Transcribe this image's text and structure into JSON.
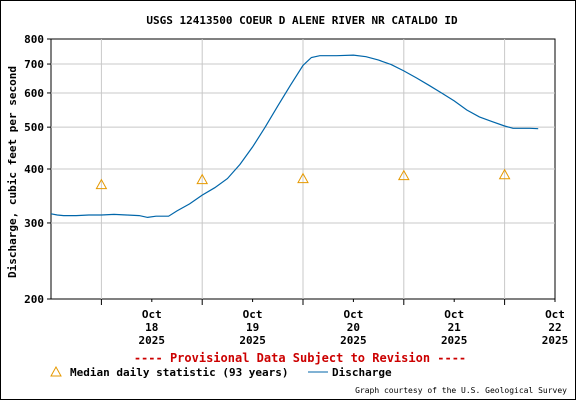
{
  "chart_data": {
    "type": "line",
    "title": "USGS 12413500 COEUR D ALENE RIVER NR CATALDO ID",
    "ylabel": "Discharge, cubic feet per second",
    "xlabel": "",
    "y_scale": "log",
    "ylim": [
      200,
      800
    ],
    "y_ticks": [
      200,
      300,
      400,
      500,
      600,
      700,
      800
    ],
    "x_ticks": [
      {
        "day": 18,
        "lines": [
          "Oct",
          "18",
          "2025"
        ]
      },
      {
        "day": 19,
        "lines": [
          "Oct",
          "19",
          "2025"
        ]
      },
      {
        "day": 20,
        "lines": [
          "Oct",
          "20",
          "2025"
        ]
      },
      {
        "day": 21,
        "lines": [
          "Oct",
          "21",
          "2025"
        ]
      },
      {
        "day": 22,
        "lines": [
          "Oct",
          "22",
          "2025"
        ]
      }
    ],
    "xlim": [
      "2025-10-17 12:00",
      "2025-10-22 12:00"
    ],
    "grid": true,
    "series": [
      {
        "name": "Discharge",
        "color": "#0066aa",
        "points": [
          [
            "2025-10-17 12:00",
            315
          ],
          [
            "2025-10-17 13:30",
            313
          ],
          [
            "2025-10-17 15:00",
            312
          ],
          [
            "2025-10-17 18:00",
            312
          ],
          [
            "2025-10-17 21:00",
            313
          ],
          [
            "2025-10-18 00:00",
            313
          ],
          [
            "2025-10-18 03:00",
            314
          ],
          [
            "2025-10-18 06:00",
            313
          ],
          [
            "2025-10-18 09:00",
            312
          ],
          [
            "2025-10-18 11:00",
            309
          ],
          [
            "2025-10-18 13:00",
            311
          ],
          [
            "2025-10-18 16:00",
            311
          ],
          [
            "2025-10-18 18:00",
            320
          ],
          [
            "2025-10-18 21:00",
            332
          ],
          [
            "2025-10-19 00:00",
            348
          ],
          [
            "2025-10-19 03:00",
            362
          ],
          [
            "2025-10-19 06:00",
            380
          ],
          [
            "2025-10-19 09:00",
            410
          ],
          [
            "2025-10-19 12:00",
            450
          ],
          [
            "2025-10-19 15:00",
            500
          ],
          [
            "2025-10-19 18:00",
            560
          ],
          [
            "2025-10-19 21:00",
            625
          ],
          [
            "2025-10-20 00:00",
            695
          ],
          [
            "2025-10-20 02:00",
            725
          ],
          [
            "2025-10-20 04:00",
            732
          ],
          [
            "2025-10-20 08:00",
            732
          ],
          [
            "2025-10-20 12:00",
            734
          ],
          [
            "2025-10-20 15:00",
            728
          ],
          [
            "2025-10-20 18:00",
            715
          ],
          [
            "2025-10-20 21:00",
            698
          ],
          [
            "2025-10-21 00:00",
            675
          ],
          [
            "2025-10-21 03:00",
            650
          ],
          [
            "2025-10-21 06:00",
            625
          ],
          [
            "2025-10-21 09:00",
            600
          ],
          [
            "2025-10-21 12:00",
            575
          ],
          [
            "2025-10-21 15:00",
            548
          ],
          [
            "2025-10-21 18:00",
            528
          ],
          [
            "2025-10-21 21:00",
            515
          ],
          [
            "2025-10-22 00:00",
            503
          ],
          [
            "2025-10-22 02:00",
            497
          ],
          [
            "2025-10-22 04:00",
            497
          ],
          [
            "2025-10-22 06:00",
            497
          ],
          [
            "2025-10-22 08:00",
            496
          ]
        ]
      },
      {
        "name": "Median daily statistic (93 years)",
        "color": "#e69900",
        "marker": "triangle",
        "points": [
          [
            "2025-10-18 00:00",
            368
          ],
          [
            "2025-10-19 00:00",
            378
          ],
          [
            "2025-10-20 00:00",
            380
          ],
          [
            "2025-10-21 00:00",
            386
          ],
          [
            "2025-10-22 00:00",
            388
          ]
        ]
      }
    ],
    "notice": "---- Provisional Data Subject to Revision ----",
    "legend": {
      "placement": "bottom",
      "median_label": "Median daily statistic (93 years)",
      "discharge_label": "Discharge"
    },
    "credit": "Graph courtesy of the U.S. Geological Survey"
  }
}
